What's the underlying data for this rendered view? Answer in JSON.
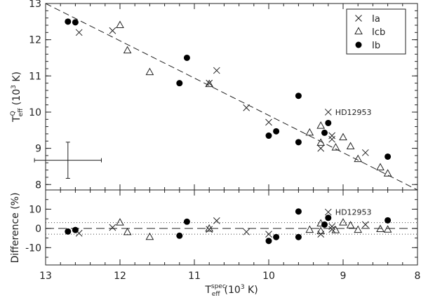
{
  "chart_data": [
    {
      "type": "scatter",
      "panel": "top",
      "x_reversed": true,
      "xlim": [
        13,
        8
      ],
      "ylim": [
        7.85,
        13.0
      ],
      "xticks": [
        "13",
        "12",
        "11",
        "10",
        "9",
        "8"
      ],
      "yticks": [
        "13",
        "12",
        "11",
        "10",
        "9",
        "8"
      ],
      "ylabel": {
        "main": "T",
        "sup": "Q",
        "sub": "eff",
        "unit": " (10",
        "unit_sup": "3",
        "unit_end": " K)"
      },
      "legend_placement": "top-right",
      "series": [
        {
          "name": "Ia",
          "marker": "cross",
          "points": [
            [
              12.55,
              12.2
            ],
            [
              12.1,
              12.25
            ],
            [
              10.8,
              10.8
            ],
            [
              10.7,
              11.15
            ],
            [
              10.3,
              10.12
            ],
            [
              10.0,
              9.72
            ],
            [
              9.2,
              10.0
            ],
            [
              9.3,
              9.0
            ],
            [
              9.15,
              9.35
            ],
            [
              9.15,
              9.25
            ],
            [
              8.7,
              8.88
            ]
          ]
        },
        {
          "name": "Icb",
          "marker": "triangle",
          "points": [
            [
              12.0,
              12.4
            ],
            [
              11.9,
              11.7
            ],
            [
              11.6,
              11.1
            ],
            [
              10.8,
              10.77
            ],
            [
              9.45,
              9.43
            ],
            [
              9.3,
              9.62
            ],
            [
              9.3,
              9.15
            ],
            [
              9.1,
              9.02
            ],
            [
              9.0,
              9.3
            ],
            [
              8.9,
              9.05
            ],
            [
              8.8,
              8.7
            ],
            [
              8.5,
              8.47
            ],
            [
              8.4,
              8.3
            ]
          ]
        },
        {
          "name": "Ib",
          "marker": "dot",
          "points": [
            [
              12.7,
              12.5
            ],
            [
              12.6,
              12.48
            ],
            [
              11.2,
              10.8
            ],
            [
              11.1,
              11.5
            ],
            [
              10.0,
              9.35
            ],
            [
              9.9,
              9.47
            ],
            [
              9.6,
              9.17
            ],
            [
              9.6,
              10.45
            ],
            [
              9.25,
              9.43
            ],
            [
              9.2,
              9.7
            ],
            [
              8.4,
              8.77
            ]
          ]
        }
      ],
      "fit_line": {
        "style": "dashed",
        "x": [
          13.0,
          8.0
        ],
        "y": [
          13.0,
          7.85
        ]
      },
      "error_bar": {
        "x": 12.7,
        "y": 8.67,
        "dx": 0.45,
        "dy": 0.5
      },
      "annotation": {
        "text": "HD12953",
        "x": 9.2,
        "y": 10.0
      }
    },
    {
      "type": "scatter",
      "panel": "bottom",
      "x_reversed": true,
      "xlim": [
        13,
        8
      ],
      "ylim": [
        -19,
        20
      ],
      "xticks": [
        "13",
        "12",
        "11",
        "10",
        "9",
        "8"
      ],
      "yticks": [
        "10",
        "0",
        "-10"
      ],
      "ylabel": "Difference (%)",
      "xlabel": {
        "main": "T",
        "sup": "spec",
        "sub": "eff",
        "unit": "(10",
        "unit_sup": "3",
        "unit_end": " K)"
      },
      "reference_lines": {
        "zero_dashed": 0,
        "dotted": [
          3,
          -3
        ]
      },
      "series": [
        {
          "name": "Ia",
          "marker": "cross",
          "points": [
            [
              12.55,
              -2.5
            ],
            [
              12.1,
              0.5
            ],
            [
              10.8,
              -0.5
            ],
            [
              10.7,
              4.0
            ],
            [
              10.3,
              -1.8
            ],
            [
              10.0,
              -3.0
            ],
            [
              9.2,
              8.5
            ],
            [
              9.3,
              -3.0
            ],
            [
              9.15,
              1.0
            ],
            [
              9.15,
              -0.5
            ],
            [
              8.7,
              2.0
            ]
          ]
        },
        {
          "name": "Icb",
          "marker": "triangle",
          "points": [
            [
              12.0,
              3.0
            ],
            [
              11.9,
              -2.0
            ],
            [
              11.6,
              -4.5
            ],
            [
              10.8,
              -0.2
            ],
            [
              9.45,
              -0.8
            ],
            [
              9.3,
              2.5
            ],
            [
              9.3,
              -1.5
            ],
            [
              9.1,
              -1.0
            ],
            [
              9.0,
              3.0
            ],
            [
              8.9,
              1.5
            ],
            [
              8.8,
              -0.8
            ],
            [
              8.5,
              -0.4
            ],
            [
              8.4,
              -0.7
            ]
          ]
        },
        {
          "name": "Ib",
          "marker": "dot",
          "points": [
            [
              12.7,
              -1.6
            ],
            [
              12.6,
              -0.8
            ],
            [
              11.2,
              -3.8
            ],
            [
              11.1,
              3.5
            ],
            [
              10.0,
              -6.5
            ],
            [
              9.9,
              -4.5
            ],
            [
              9.6,
              -4.5
            ],
            [
              9.6,
              8.8
            ],
            [
              9.25,
              2.0
            ],
            [
              9.2,
              5.5
            ],
            [
              8.4,
              4.2
            ]
          ]
        }
      ],
      "annotation": {
        "text": "HD12953",
        "x": 9.2,
        "y": 8.5
      }
    }
  ]
}
